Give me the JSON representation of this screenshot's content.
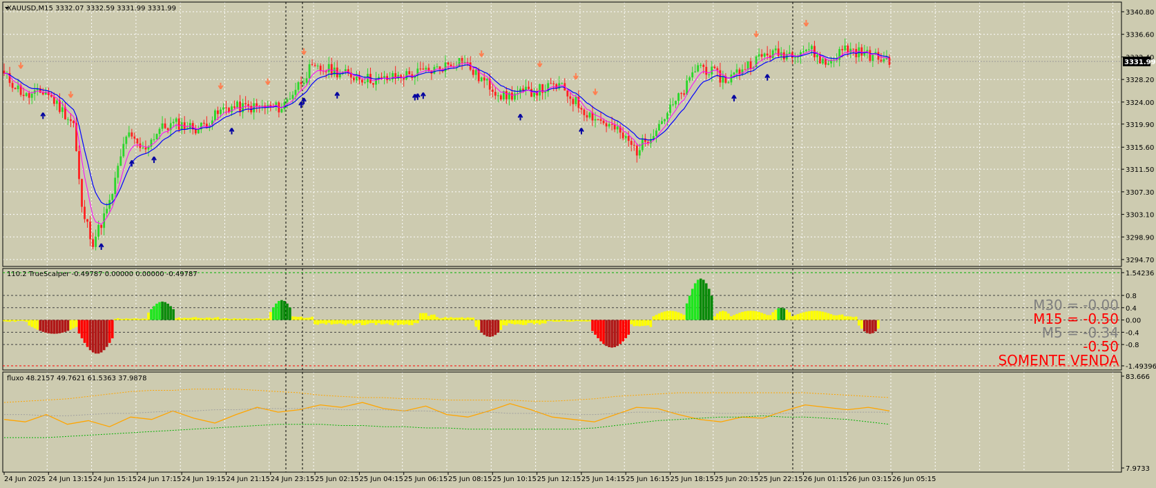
{
  "symbol_header": "XAUUSD,M15  3332.07 3332.59 3331.99 3331.99",
  "current_price_badge": "3331.99",
  "price_axis_labels": [
    "3340.80",
    "3336.60",
    "3332.40",
    "3328.20",
    "3324.00",
    "3319.90",
    "3315.60",
    "3311.50",
    "3307.30",
    "3303.10",
    "3298.90",
    "3294.70"
  ],
  "indicator_header": "110.2 TrueScalper -0.49787 0.00000 0.00000 -0.49787",
  "indicator_axis_labels": [
    "1.54236",
    "0.8",
    "0.4",
    "0.00",
    "-0.4",
    "-0.8",
    "-1.49396"
  ],
  "indicator_readouts": [
    {
      "text": "M30 = -0.00",
      "color": "#808080"
    },
    {
      "text": "M15 = -0.50",
      "color": "#ff0000"
    },
    {
      "text": "M5 = -0.34",
      "color": "#808080"
    },
    {
      "text": "-0.50",
      "color": "#ff0000"
    },
    {
      "text": "SOMENTE VENDA",
      "color": "#ff0000"
    }
  ],
  "fluxo_header": "fluxo 48.2157 49.7621 61.5363 37.9878",
  "fluxo_axis_labels": [
    "83.666",
    "7.9733"
  ],
  "time_labels": [
    "24 Jun 2025",
    "24 Jun 13:15",
    "24 Jun 15:15",
    "24 Jun 17:15",
    "24 Jun 19:15",
    "24 Jun 21:15",
    "24 Jun 23:15",
    "25 Jun 02:15",
    "25 Jun 04:15",
    "25 Jun 06:15",
    "25 Jun 08:15",
    "25 Jun 10:15",
    "25 Jun 12:15",
    "25 Jun 14:15",
    "25 Jun 16:15",
    "25 Jun 18:15",
    "25 Jun 20:15",
    "25 Jun 22:15",
    "26 Jun 01:15",
    "26 Jun 03:15",
    "26 Jun 05:15"
  ],
  "colors": {
    "background": "#cdcbb0",
    "bull": "#2ad62a",
    "bear": "#ff2020",
    "ma_fast": "#ff00ff",
    "ma_slow": "#0000ff",
    "hist_green": "#1ee61e",
    "hist_darkgreen": "#0a8a0a",
    "hist_yellow": "#ffff00",
    "hist_red": "#ff0000",
    "hist_darkred": "#b01818",
    "fluxo_line": "#ffa500",
    "fluxo_mid": "#a0a0a0",
    "fluxo_upper": "#ffa500",
    "fluxo_lower": "#00b000"
  },
  "chart_data": [
    {
      "type": "candlestick",
      "title": "XAUUSD,M15",
      "ylim": [
        3294.7,
        3340.8
      ],
      "x_range": [
        "24 Jun 2025",
        "26 Jun 05:15"
      ],
      "close_path_points": [
        [
          0,
          3329
        ],
        [
          8,
          3325
        ],
        [
          15,
          3326
        ],
        [
          25,
          3320
        ],
        [
          28,
          3304
        ],
        [
          32,
          3298
        ],
        [
          38,
          3305
        ],
        [
          44,
          3318
        ],
        [
          50,
          3315
        ],
        [
          56,
          3319
        ],
        [
          62,
          3320
        ],
        [
          70,
          3319
        ],
        [
          80,
          3323
        ],
        [
          90,
          3323
        ],
        [
          100,
          3323
        ],
        [
          110,
          3330
        ],
        [
          118,
          3330
        ],
        [
          124,
          3329
        ],
        [
          135,
          3328
        ],
        [
          145,
          3329
        ],
        [
          155,
          3330
        ],
        [
          165,
          3332
        ],
        [
          170,
          3329
        ],
        [
          180,
          3325
        ],
        [
          190,
          3326
        ],
        [
          200,
          3327
        ],
        [
          210,
          3322
        ],
        [
          220,
          3319
        ],
        [
          228,
          3315
        ],
        [
          233,
          3318
        ],
        [
          245,
          3326
        ],
        [
          250,
          3331
        ],
        [
          260,
          3328
        ],
        [
          268,
          3331
        ],
        [
          275,
          3333
        ],
        [
          282,
          3333
        ],
        [
          290,
          3334
        ],
        [
          296,
          3331
        ],
        [
          303,
          3334
        ],
        [
          310,
          3333
        ],
        [
          316,
          3332
        ],
        [
          320,
          3332
        ]
      ],
      "arrows_up_bar_index": [
        14,
        35,
        46,
        54,
        82,
        107,
        108,
        120,
        148,
        149,
        151,
        186,
        208,
        263,
        275
      ],
      "arrows_down_bar_index": [
        6,
        24,
        78,
        95,
        108,
        172,
        193,
        206,
        213,
        271,
        289
      ]
    },
    {
      "type": "bar",
      "title": "110.2 TrueScalper",
      "ylim": [
        -1.49396,
        1.54236
      ],
      "segments": [
        [
          0,
          9,
          -0.05
        ],
        [
          9,
          27,
          -0.45
        ],
        [
          27,
          40,
          -1.1
        ],
        [
          40,
          52,
          0.05
        ],
        [
          52,
          62,
          0.6
        ],
        [
          62,
          78,
          0.08
        ],
        [
          78,
          96,
          0.05
        ],
        [
          96,
          104,
          0.65
        ],
        [
          104,
          112,
          0.1
        ],
        [
          112,
          150,
          -0.15
        ],
        [
          150,
          156,
          0.2
        ],
        [
          156,
          170,
          0.08
        ],
        [
          170,
          180,
          -0.55
        ],
        [
          180,
          196,
          -0.15
        ],
        [
          196,
          212,
          -0.05
        ],
        [
          212,
          226,
          -0.9
        ],
        [
          226,
          234,
          -0.2
        ],
        [
          234,
          246,
          0.3
        ],
        [
          246,
          256,
          1.35
        ],
        [
          256,
          262,
          0.3
        ],
        [
          262,
          276,
          0.3
        ],
        [
          276,
          284,
          0.4
        ],
        [
          284,
          300,
          0.3
        ],
        [
          300,
          308,
          0.15
        ],
        [
          308,
          316,
          -0.45
        ]
      ],
      "reference_levels": [
        0.8,
        0.4,
        0.0,
        -0.4,
        -0.8
      ]
    },
    {
      "type": "line",
      "title": "fluxo",
      "ylim": [
        7.9733,
        83.666
      ],
      "series": [
        {
          "name": "fluxo",
          "values": [
            48,
            46,
            52,
            44,
            47,
            42,
            50,
            48,
            55,
            49,
            45,
            52,
            58,
            54,
            56,
            60,
            58,
            62,
            57,
            55,
            59,
            52,
            50,
            55,
            61,
            56,
            50,
            48,
            46,
            52,
            58,
            57,
            52,
            48,
            46,
            50,
            49,
            55,
            60,
            58,
            56,
            58,
            55
          ]
        },
        {
          "name": "mid",
          "values": [
            52,
            52,
            51,
            51,
            52,
            53,
            53,
            54,
            55,
            55,
            56,
            56,
            57,
            57,
            57,
            57,
            56,
            56,
            56,
            55,
            55,
            54,
            54,
            54,
            53,
            53,
            53,
            52,
            52,
            53,
            54,
            54,
            54,
            54,
            53,
            53,
            53,
            53,
            54,
            54,
            54,
            54,
            54
          ]
        },
        {
          "name": "upper",
          "values": [
            62,
            63,
            64,
            65,
            67,
            69,
            71,
            72,
            72,
            73,
            73,
            73,
            72,
            71,
            70,
            68,
            67,
            66,
            66,
            65,
            65,
            64,
            64,
            64,
            64,
            63,
            63,
            64,
            65,
            67,
            68,
            69,
            70,
            70,
            70,
            70,
            70,
            70,
            70,
            69,
            68,
            67,
            66
          ]
        },
        {
          "name": "lower",
          "values": [
            33,
            33,
            33,
            34,
            35,
            36,
            37,
            38,
            39,
            40,
            41,
            42,
            43,
            44,
            44,
            44,
            43,
            43,
            42,
            42,
            41,
            41,
            40,
            40,
            40,
            40,
            40,
            40,
            41,
            43,
            45,
            47,
            48,
            49,
            50,
            50,
            51,
            50,
            50,
            49,
            48,
            46,
            44
          ]
        }
      ]
    }
  ]
}
